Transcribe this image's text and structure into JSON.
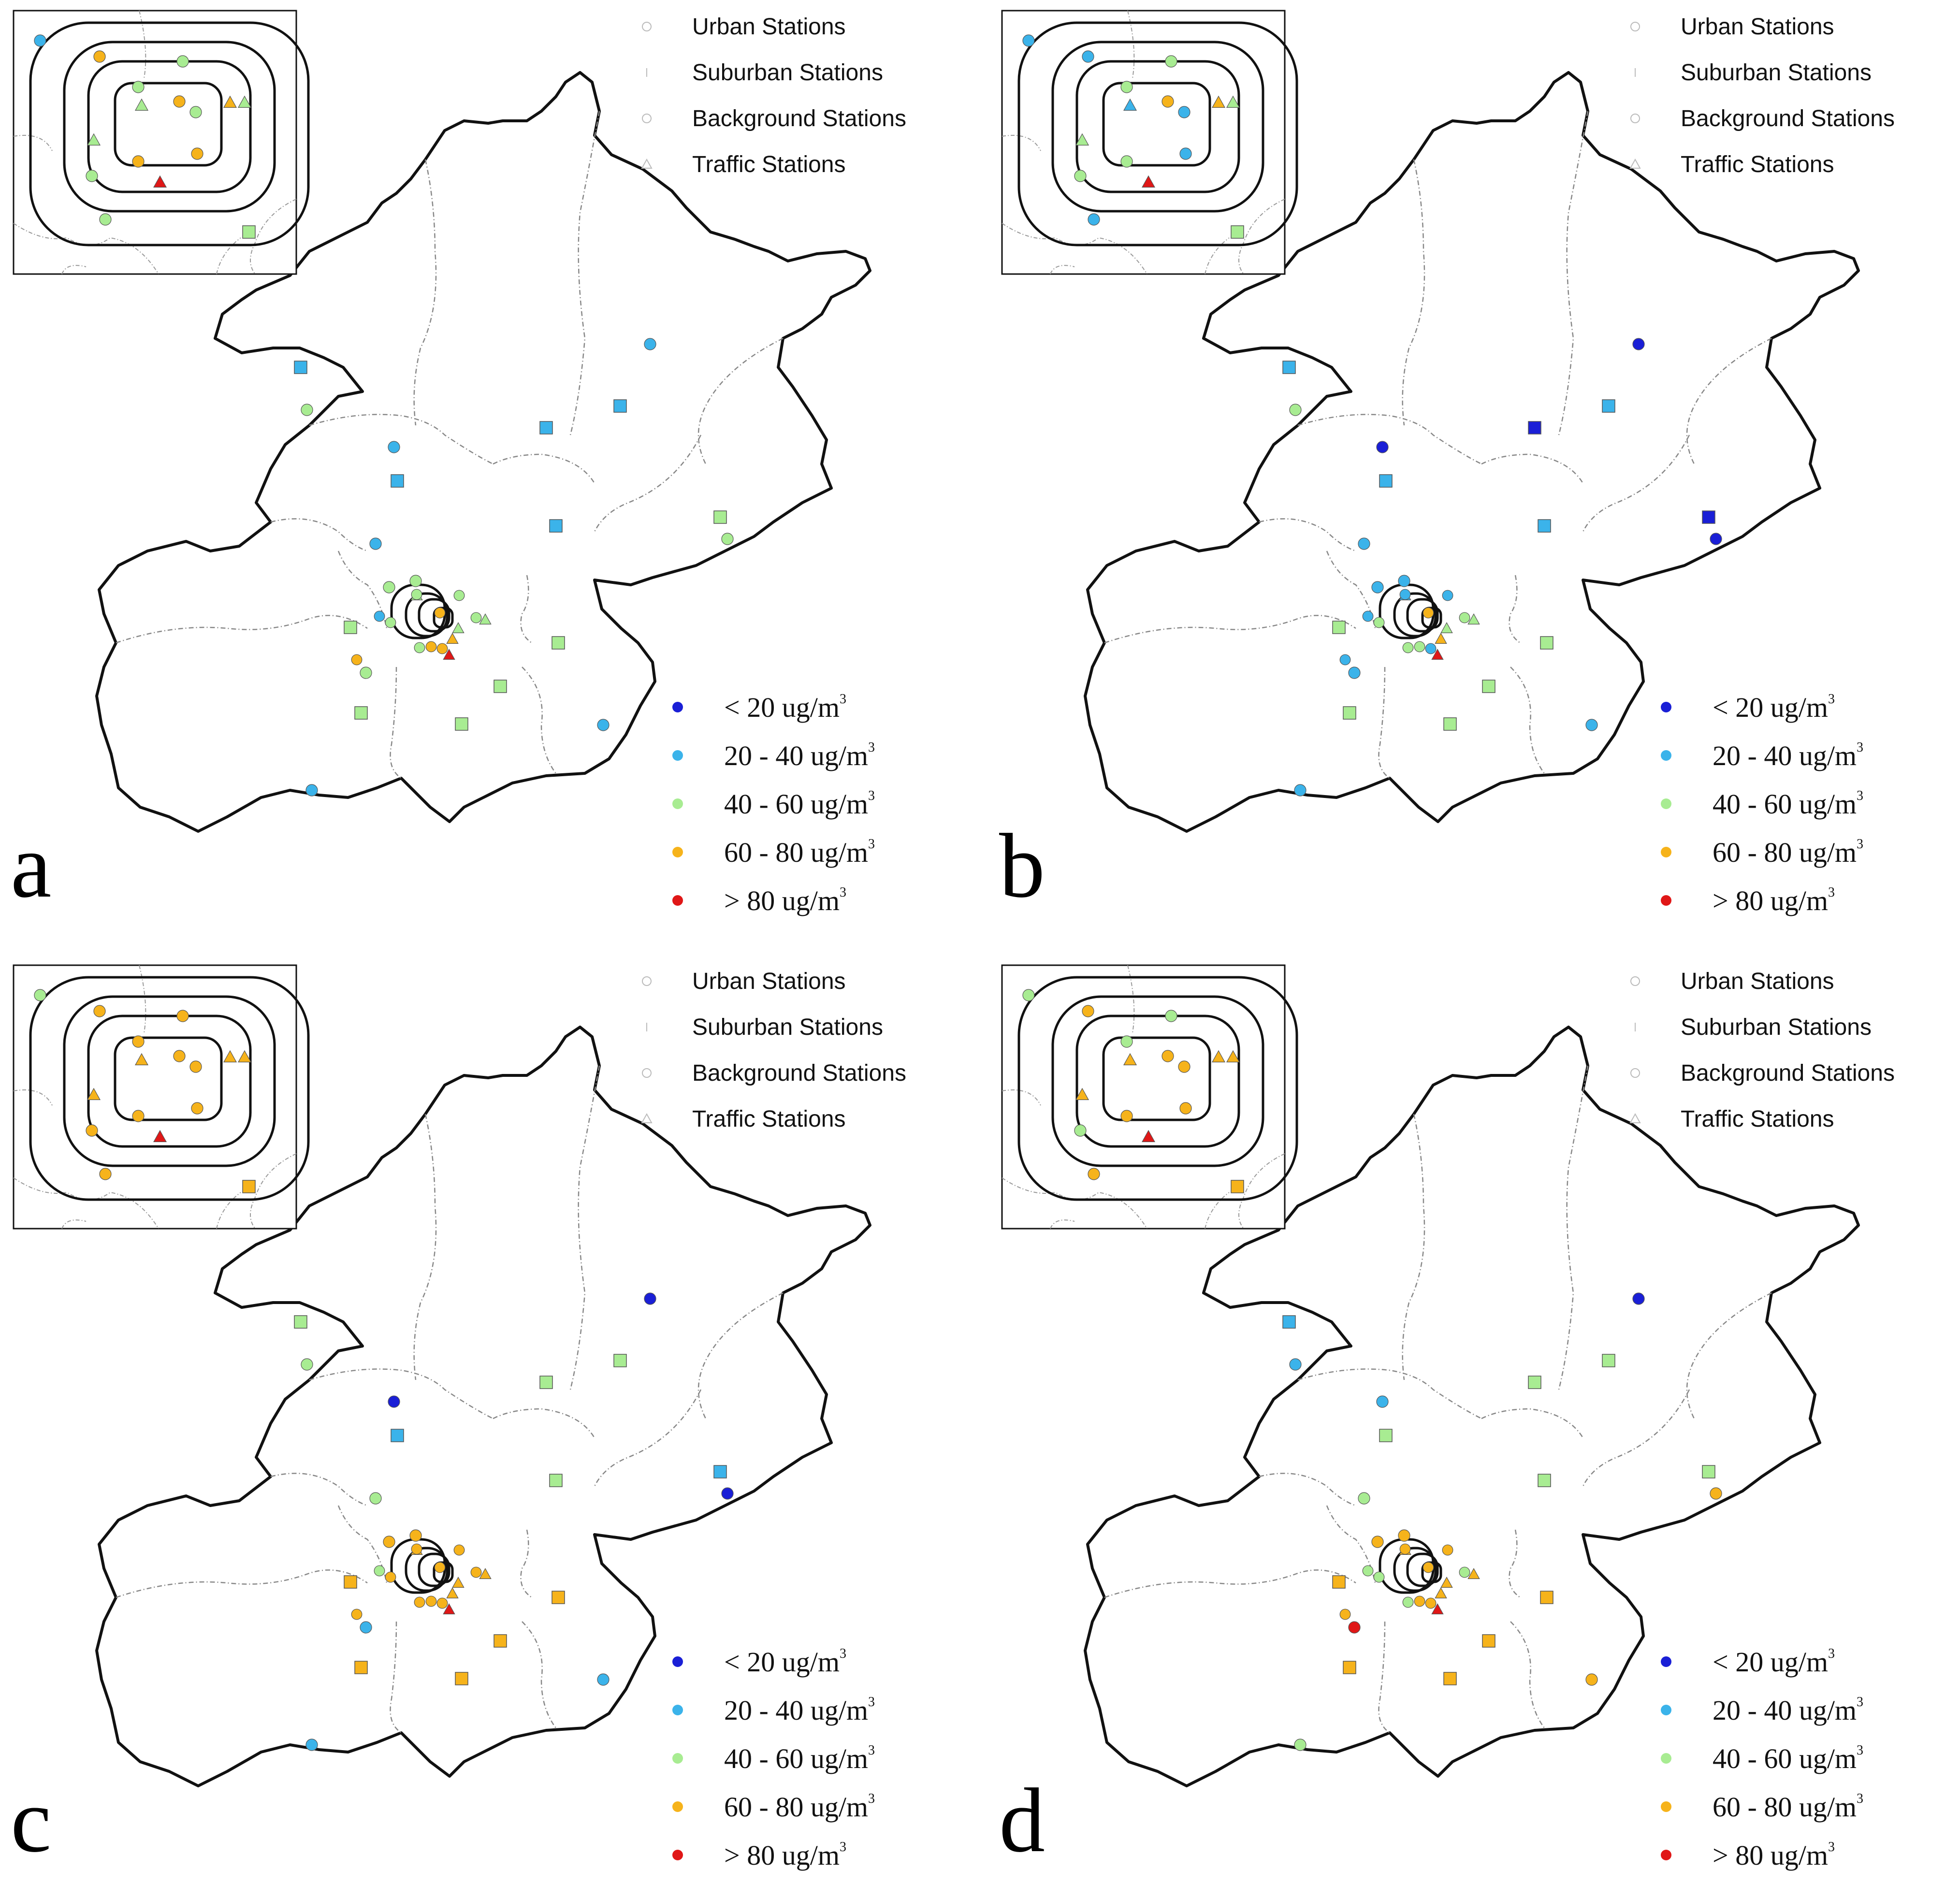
{
  "legend": {
    "station_types": [
      "Urban Stations",
      "Suburban Stations",
      "Background Stations",
      "Traffic Stations"
    ],
    "concentration_classes": [
      {
        "label": "< 20 ug/m",
        "sup": "3",
        "color": "#1a1fd6"
      },
      {
        "label": "20 - 40 ug/m",
        "sup": "3",
        "color": "#3bb3ea"
      },
      {
        "label": "40 - 60 ug/m",
        "sup": "3",
        "color": "#a8ec92"
      },
      {
        "label": "60 - 80 ug/m",
        "sup": "3",
        "color": "#f6b31b"
      },
      {
        "label": "> 80 ug/m",
        "sup": "3",
        "color": "#e01717"
      }
    ]
  },
  "panels": [
    {
      "letter": "a",
      "stations": [
        {
          "type": "background",
          "class": 1
        },
        {
          "type": "suburban",
          "class": 1
        },
        {
          "type": "background",
          "class": 2
        },
        {
          "type": "suburban",
          "class": 1
        },
        {
          "type": "urban",
          "class": 1
        },
        {
          "type": "suburban",
          "class": 1
        },
        {
          "type": "suburban",
          "class": 1
        },
        {
          "type": "suburban",
          "class": 2
        },
        {
          "type": "urban",
          "class": 2
        },
        {
          "type": "urban",
          "class": 1
        },
        {
          "type": "suburban",
          "class": 1
        },
        {
          "type": "urban",
          "class": 2
        },
        {
          "type": "urban",
          "class": 2
        },
        {
          "type": "suburban",
          "class": 2
        },
        {
          "type": "suburban",
          "class": 2
        },
        {
          "type": "suburban",
          "class": 2
        },
        {
          "type": "background",
          "class": 2
        },
        {
          "type": "background",
          "class": 1
        },
        {
          "type": "background",
          "class": 1
        },
        {
          "type": "suburban",
          "class": 2
        },
        {
          "type": "suburban",
          "class": 2
        }
      ],
      "inset": [
        "1",
        "3",
        "2",
        "2",
        "2",
        "2",
        "3",
        "3",
        "2",
        "3",
        "3",
        "2",
        "2",
        "4",
        "2"
      ]
    },
    {
      "letter": "b",
      "stations": [
        {
          "type": "background",
          "class": 0
        },
        {
          "type": "suburban",
          "class": 1
        },
        {
          "type": "background",
          "class": 2
        },
        {
          "type": "suburban",
          "class": 0
        },
        {
          "type": "urban",
          "class": 0
        },
        {
          "type": "suburban",
          "class": 1
        },
        {
          "type": "suburban",
          "class": 1
        },
        {
          "type": "suburban",
          "class": 0
        },
        {
          "type": "urban",
          "class": 0
        },
        {
          "type": "urban",
          "class": 1
        },
        {
          "type": "suburban",
          "class": 1
        },
        {
          "type": "urban",
          "class": 1
        },
        {
          "type": "urban",
          "class": 1
        },
        {
          "type": "suburban",
          "class": 2
        },
        {
          "type": "suburban",
          "class": 2
        },
        {
          "type": "suburban",
          "class": 2
        },
        {
          "type": "background",
          "class": 1
        },
        {
          "type": "background",
          "class": 1
        },
        {
          "type": "background",
          "class": 1
        },
        {
          "type": "suburban",
          "class": 2
        },
        {
          "type": "suburban",
          "class": 2
        }
      ],
      "inset": [
        "1",
        "1",
        "2",
        "1",
        "1",
        "2",
        "3",
        "3",
        "2",
        "1",
        "2",
        "2",
        "1",
        "4",
        "2"
      ]
    },
    {
      "letter": "c",
      "stations": [
        {
          "type": "background",
          "class": 0
        },
        {
          "type": "suburban",
          "class": 2
        },
        {
          "type": "background",
          "class": 2
        },
        {
          "type": "suburban",
          "class": 2
        },
        {
          "type": "urban",
          "class": 0
        },
        {
          "type": "suburban",
          "class": 2
        },
        {
          "type": "suburban",
          "class": 1
        },
        {
          "type": "suburban",
          "class": 1
        },
        {
          "type": "urban",
          "class": 0
        },
        {
          "type": "urban",
          "class": 2
        },
        {
          "type": "suburban",
          "class": 2
        },
        {
          "type": "urban",
          "class": 3
        },
        {
          "type": "urban",
          "class": 3
        },
        {
          "type": "suburban",
          "class": 3
        },
        {
          "type": "suburban",
          "class": 3
        },
        {
          "type": "suburban",
          "class": 3
        },
        {
          "type": "background",
          "class": 1
        },
        {
          "type": "background",
          "class": 1
        },
        {
          "type": "background",
          "class": 1
        },
        {
          "type": "suburban",
          "class": 3
        },
        {
          "type": "suburban",
          "class": 3
        }
      ],
      "inset": [
        "2",
        "3",
        "3",
        "3",
        "3",
        "3",
        "3",
        "3",
        "3",
        "3",
        "3",
        "3",
        "3",
        "4",
        "3"
      ]
    },
    {
      "letter": "d",
      "stations": [
        {
          "type": "background",
          "class": 0
        },
        {
          "type": "suburban",
          "class": 1
        },
        {
          "type": "background",
          "class": 1
        },
        {
          "type": "suburban",
          "class": 2
        },
        {
          "type": "urban",
          "class": 1
        },
        {
          "type": "suburban",
          "class": 2
        },
        {
          "type": "suburban",
          "class": 2
        },
        {
          "type": "suburban",
          "class": 2
        },
        {
          "type": "urban",
          "class": 3
        },
        {
          "type": "urban",
          "class": 2
        },
        {
          "type": "suburban",
          "class": 2
        },
        {
          "type": "urban",
          "class": 3
        },
        {
          "type": "urban",
          "class": 3
        },
        {
          "type": "suburban",
          "class": 3
        },
        {
          "type": "suburban",
          "class": 3
        },
        {
          "type": "suburban",
          "class": 3
        },
        {
          "type": "background",
          "class": 4
        },
        {
          "type": "background",
          "class": 3
        },
        {
          "type": "background",
          "class": 2
        },
        {
          "type": "suburban",
          "class": 3
        },
        {
          "type": "suburban",
          "class": 3
        }
      ],
      "inset": [
        "2",
        "3",
        "2",
        "3",
        "3",
        "2",
        "3",
        "3",
        "3",
        "3",
        "3",
        "2",
        "3",
        "4",
        "3"
      ]
    }
  ]
}
